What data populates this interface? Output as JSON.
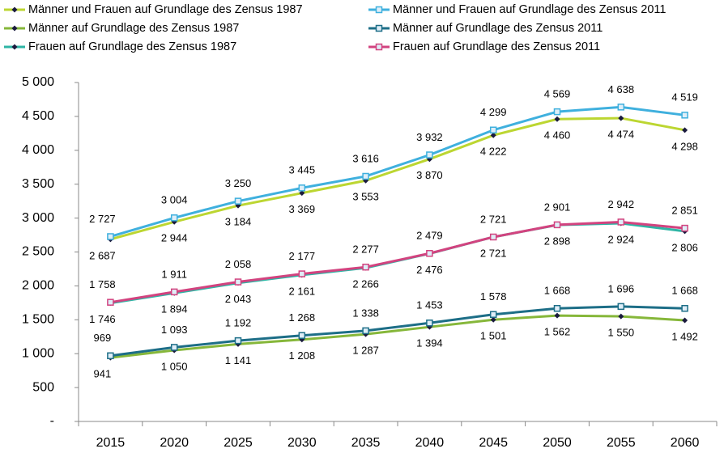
{
  "chart_data": {
    "type": "line",
    "categories": [
      "2015",
      "2020",
      "2025",
      "2030",
      "2035",
      "2040",
      "2045",
      "2050",
      "2055",
      "2060"
    ],
    "series": [
      {
        "name": "Männer und Frauen auf Grundlage des Zensus 1987",
        "color": "#bcd631",
        "marker": "diamond",
        "label_position": "below",
        "values": [
          2687,
          2944,
          3184,
          3369,
          3553,
          3870,
          4222,
          4460,
          4474,
          4298
        ],
        "value_labels": [
          "2 687",
          "2 944",
          "3 184",
          "3 369",
          "3 553",
          "3 870",
          "4 222",
          "4 460",
          "4 474",
          "4 298"
        ]
      },
      {
        "name": "Männer und Frauen auf Grundlage des Zensus 2011",
        "color": "#3fb0de",
        "marker": "square",
        "label_position": "above",
        "values": [
          2727,
          3004,
          3250,
          3445,
          3616,
          3932,
          4299,
          4569,
          4638,
          4519
        ],
        "value_labels": [
          "2 727",
          "3 004",
          "3 250",
          "3 445",
          "3 616",
          "3 932",
          "4 299",
          "4 569",
          "4 638",
          "4 519"
        ]
      },
      {
        "name": "Männer auf Grundlage des Zensus 1987",
        "color": "#86b73a",
        "marker": "diamond",
        "label_position": "below",
        "values": [
          941,
          1050,
          1141,
          1208,
          1287,
          1394,
          1501,
          1562,
          1550,
          1492
        ],
        "value_labels": [
          "941",
          "1 050",
          "1 141",
          "1 208",
          "1 287",
          "1 394",
          "1 501",
          "1 562",
          "1 550",
          "1 492"
        ]
      },
      {
        "name": "Männer auf Grundlage des Zensus 2011",
        "color": "#1d6e87",
        "marker": "square",
        "label_position": "above",
        "values": [
          969,
          1093,
          1192,
          1268,
          1338,
          1453,
          1578,
          1668,
          1696,
          1668
        ],
        "value_labels": [
          "969",
          "1 093",
          "1 192",
          "1 268",
          "1 338",
          "1 453",
          "1 578",
          "1 668",
          "1 696",
          "1 668"
        ]
      },
      {
        "name": "Frauen auf Grundlage des Zensus 1987",
        "color": "#2eb5a5",
        "marker": "diamond",
        "label_position": "below",
        "values": [
          1746,
          1894,
          2043,
          2161,
          2266,
          2476,
          2721,
          2898,
          2924,
          2806
        ],
        "value_labels": [
          "1 746",
          "1 894",
          "2 043",
          "2 161",
          "2 266",
          "2 476",
          "2 721",
          "2 898",
          "2 924",
          "2 806"
        ]
      },
      {
        "name": "Frauen auf Grundlage des Zensus 2011",
        "color": "#d2437f",
        "marker": "square",
        "label_position": "above",
        "values": [
          1758,
          1911,
          2058,
          2177,
          2277,
          2479,
          2721,
          2901,
          2942,
          2851
        ],
        "value_labels": [
          "1 758",
          "1 911",
          "2 058",
          "2 177",
          "2 277",
          "2 479",
          "2 721",
          "2 901",
          "2 942",
          "2 851"
        ]
      }
    ],
    "ylim": [
      0,
      5000
    ],
    "yticks": [
      {
        "value": 0,
        "label": "-"
      },
      500,
      {
        "value": 1000,
        "label": "1 000"
      },
      {
        "value": 1500,
        "label": "1 500"
      },
      {
        "value": 2000,
        "label": "2 000"
      },
      {
        "value": 2500,
        "label": "2 500"
      },
      {
        "value": 3000,
        "label": "3 000"
      },
      {
        "value": 3500,
        "label": "3 500"
      },
      {
        "value": 4000,
        "label": "4 000"
      },
      {
        "value": 4500,
        "label": "4 500"
      },
      {
        "value": 5000,
        "label": "5 000"
      }
    ],
    "grid": false,
    "legend": "top"
  }
}
